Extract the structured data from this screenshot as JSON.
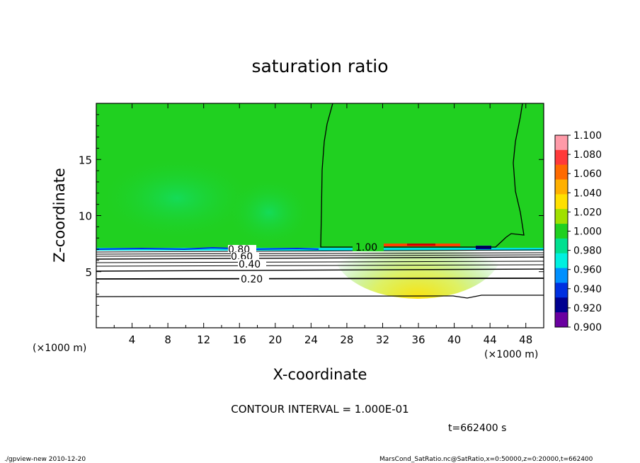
{
  "chart_data": {
    "type": "heatmap",
    "title": "saturation ratio",
    "xlabel": "X-coordinate",
    "ylabel": "Z-coordinate",
    "x_unit_left": "(×1000 m)",
    "x_unit_right": "(×1000 m)",
    "xlim": [
      0,
      50
    ],
    "ylim": [
      0,
      20
    ],
    "xticks": [
      "4",
      "8",
      "12",
      "16",
      "20",
      "24",
      "28",
      "32",
      "36",
      "40",
      "44",
      "48"
    ],
    "yticks": [
      "5",
      "10",
      "15"
    ],
    "colorbar": {
      "min": 0.9,
      "max": 1.1,
      "labels": [
        "1.100",
        "1.080",
        "1.060",
        "1.040",
        "1.020",
        "1.000",
        "0.980",
        "0.960",
        "0.940",
        "0.920",
        "0.900"
      ],
      "colors": [
        "#ff9aa8",
        "#ff3a3a",
        "#ff6a00",
        "#ffb000",
        "#ffe000",
        "#a0e000",
        "#20d020",
        "#00e090",
        "#00f0e0",
        "#0090ff",
        "#0030e0",
        "#000090",
        "#6a00a0"
      ]
    },
    "contours": [
      {
        "level": 1.0,
        "label": "1.00"
      },
      {
        "level": 0.8,
        "label": "0.80"
      },
      {
        "level": 0.6,
        "label": "0.60"
      },
      {
        "level": 0.4,
        "label": "0.40"
      },
      {
        "level": 0.2,
        "label": "0.20"
      }
    ],
    "contour_interval_text": "CONTOUR INTERVAL = 1.000E-01",
    "time_text": "t=662400 s"
  },
  "footer": {
    "left": "./gpview-new   2010-12-20",
    "right": "MarsCond_SatRatio.nc@SatRatio,x=0:50000,z=0:20000,t=662400"
  }
}
